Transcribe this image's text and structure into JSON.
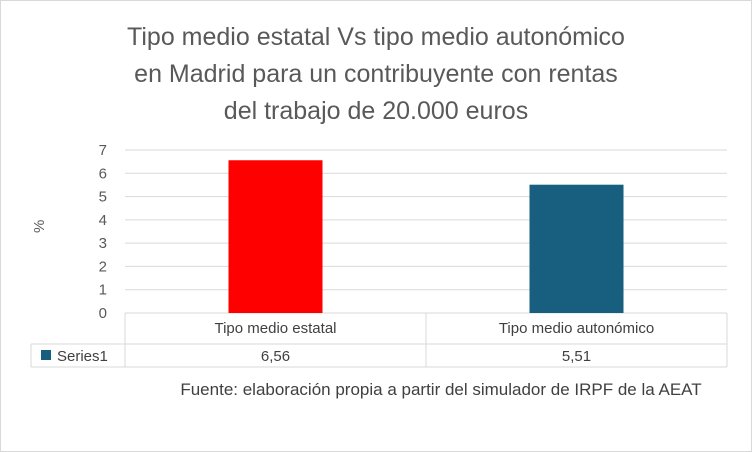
{
  "title_lines": [
    "Tipo medio estatal Vs tipo medio autonómico",
    "en Madrid para un contribuyente con rentas",
    "del trabajo de 20.000 euros"
  ],
  "footnote": "Fuente: elaboración propia a partir del simulador de IRPF de la AEAT",
  "colors": {
    "bar_estatal": "#ff0000",
    "bar_autonomico": "#175e7f",
    "legend_key": "#175e7f",
    "grid": "#d9d9d9"
  },
  "chart_data": {
    "type": "bar",
    "title": "Tipo medio estatal Vs tipo medio autonómico en Madrid para un contribuyente con rentas del trabajo de 20.000 euros",
    "categories": [
      "Tipo medio estatal",
      "Tipo medio autonómico"
    ],
    "series": [
      {
        "name": "Series1",
        "values": [
          6.56,
          5.51
        ],
        "display_values": [
          "6,56",
          "5,51"
        ]
      }
    ],
    "ylabel": "%",
    "xlabel": "",
    "ylim": [
      0,
      7
    ],
    "yticks": [
      0,
      1,
      2,
      3,
      4,
      5,
      6,
      7
    ],
    "grid": true,
    "data_table": true,
    "legend": "data-table"
  }
}
